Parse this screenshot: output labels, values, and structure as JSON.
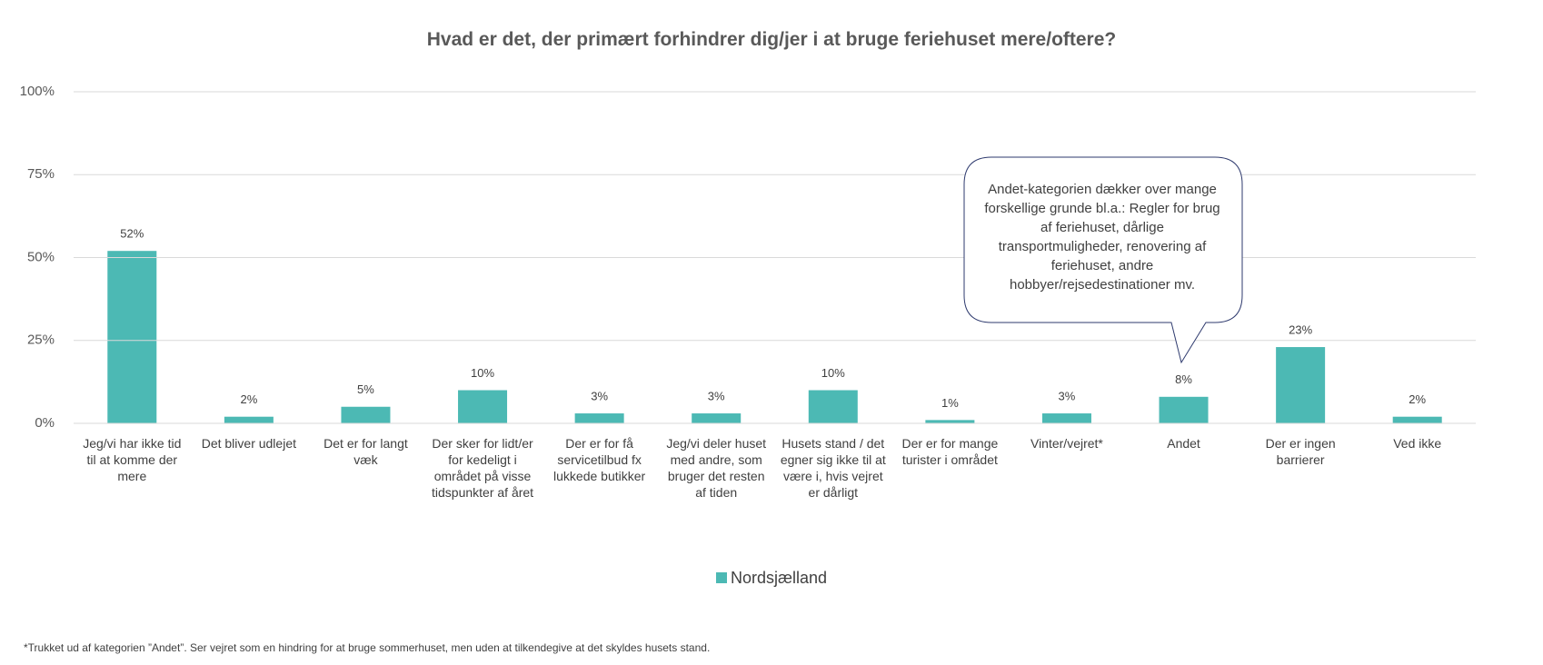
{
  "chart_data": {
    "type": "bar",
    "title": "Hvad er det, der primært forhindrer dig/jer i at bruge feriehuset mere/oftere?",
    "categories": [
      "Jeg/vi har ikke tid til at komme der mere",
      "Det bliver udlejet",
      "Det er for langt væk",
      "Der sker for lidt/er for kedeligt i området på visse tidspunkter af året",
      "Der er for få servicetilbud fx lukkede butikker",
      "Jeg/vi deler huset med andre, som bruger det resten af tiden",
      "Husets stand / det egner sig ikke til at være i, hvis vejret er dårligt",
      "Der er for mange turister i området",
      "Vinter/vejret*",
      "Andet",
      "Der er ingen barrierer",
      "Ved ikke"
    ],
    "series": [
      {
        "name": "Nordsjælland",
        "color": "#4cb9b4",
        "values": [
          52,
          2,
          5,
          10,
          3,
          3,
          10,
          1,
          3,
          8,
          23,
          2
        ],
        "value_labels": [
          "52%",
          "2%",
          "5%",
          "10%",
          "3%",
          "3%",
          "10%",
          "1%",
          "3%",
          "8%",
          "23%",
          "2%"
        ]
      }
    ],
    "ylim": [
      0,
      100
    ],
    "yticks": [
      {
        "value": 0,
        "label": "0%"
      },
      {
        "value": 25,
        "label": "25%"
      },
      {
        "value": 50,
        "label": "50%"
      },
      {
        "value": 75,
        "label": "75%"
      },
      {
        "value": 100,
        "label": "100%"
      }
    ],
    "grid": true,
    "annotation": "Andet-kategorien dækker over mange forskellige grunde bl.a.: Regler for brug af feriehuset, dårlige transportmuligheder, renovering af feriehuset, andre hobbyer/rejsedestinationer mv.",
    "footnote": "*Trukket ud af kategorien ”Andet”. Ser vejret som en hindring for at bruge sommerhuset, men uden at tilkendegive at det skyldes husets stand."
  }
}
